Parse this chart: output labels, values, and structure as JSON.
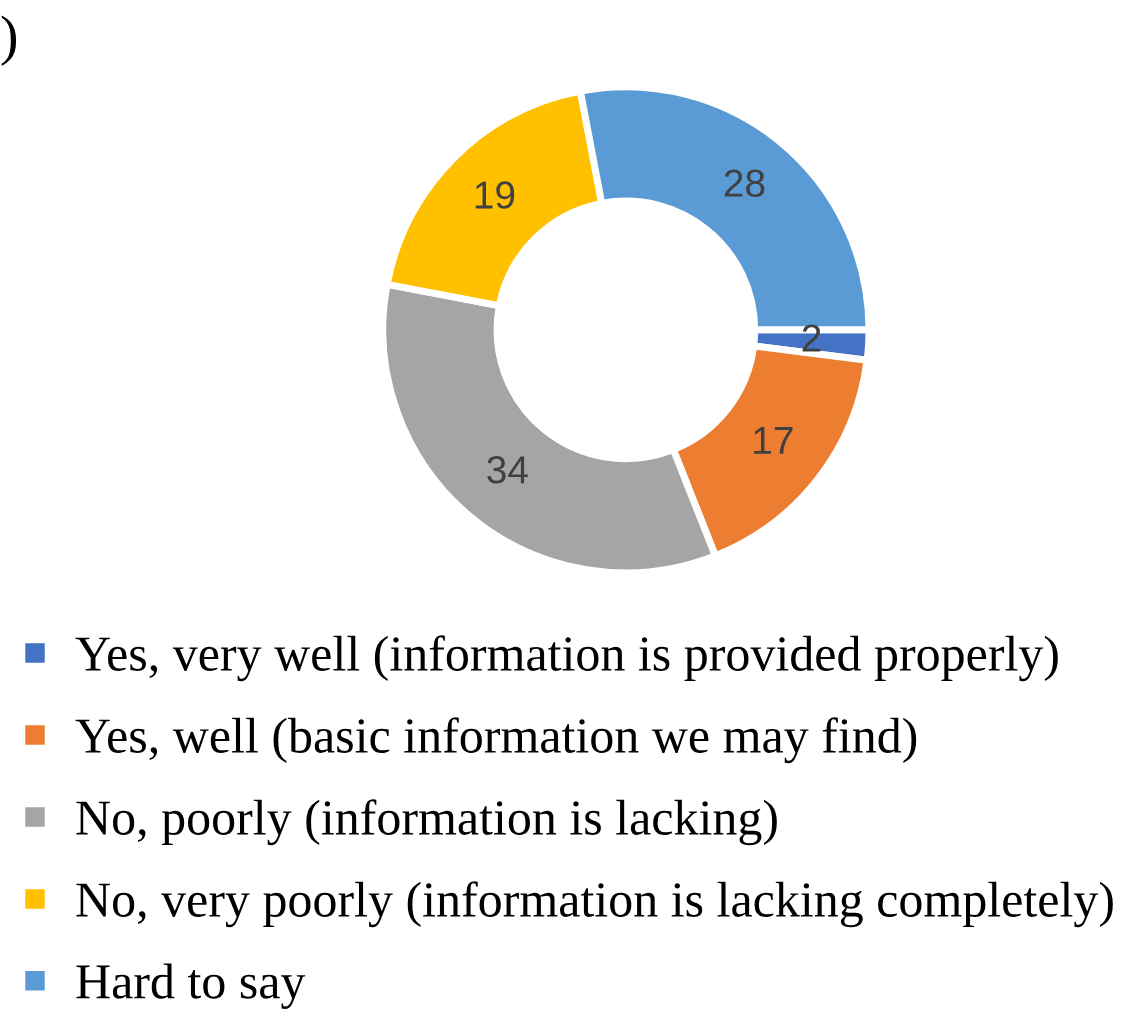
{
  "chart_data": {
    "type": "donut",
    "categories": [
      "Yes, very well (information is provided properly)",
      "Yes, well (basic information we may find)",
      "No, poorly (information is lacking)",
      "No, very poorly (information is lacking completely)",
      "Hard to say"
    ],
    "values": [
      2,
      17,
      34,
      19,
      28
    ],
    "colors": [
      "#4472c4",
      "#ed7d31",
      "#a5a5a5",
      "#ffc000",
      "#5b9bd5"
    ],
    "data_labels": true,
    "legend": "bottom",
    "annotations": [
      ")"
    ]
  }
}
